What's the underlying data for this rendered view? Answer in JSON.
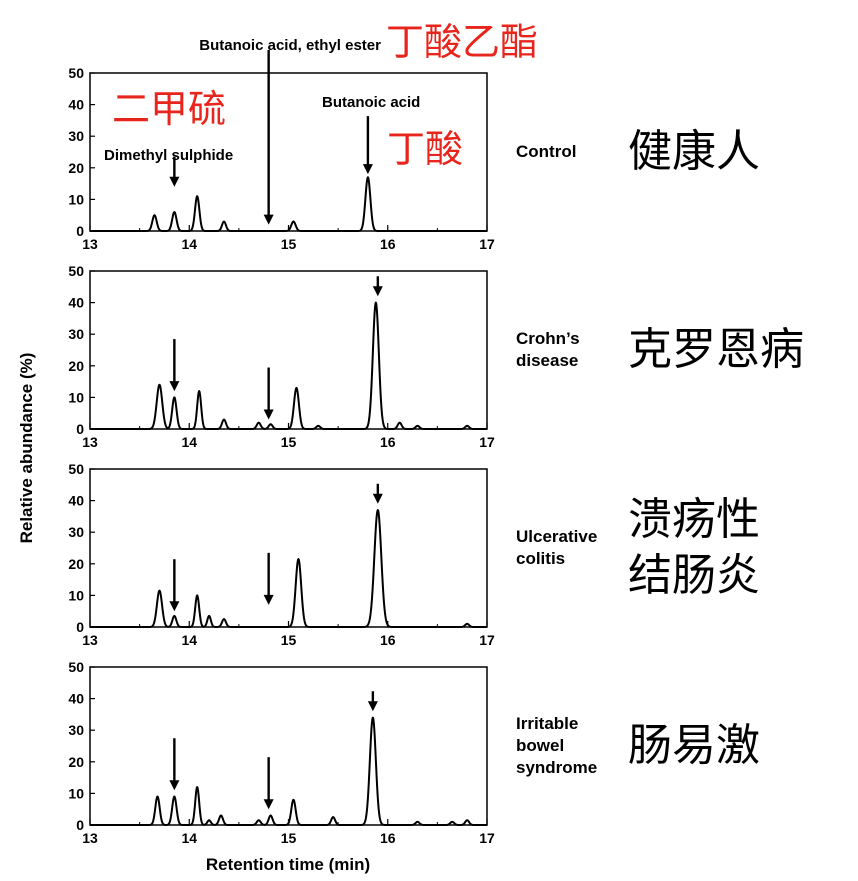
{
  "chart_data": {
    "type": "line",
    "title": "",
    "xlabel": "Retention time (min)",
    "ylabel": "Relative abundance (%)",
    "xlim": [
      13,
      17
    ],
    "ylim": [
      0,
      50
    ],
    "x_ticks": [
      "13",
      "14",
      "15",
      "16",
      "17"
    ],
    "y_ticks": [
      "0",
      "10",
      "20",
      "30",
      "40",
      "50"
    ],
    "grid": false,
    "peak_labels": {
      "dimethyl_sulphide": {
        "en": "Dimethyl sulphide",
        "zh": "二甲硫",
        "x": 13.85
      },
      "ethyl_butanoate": {
        "en": "Butanoic acid, ethyl ester",
        "zh": "丁酸乙酯",
        "x": 14.8
      },
      "butanoic_acid": {
        "en": "Butanoic acid",
        "zh": "丁酸"
      }
    },
    "panels": [
      {
        "label_lines": [
          "Control"
        ],
        "zh_lines": [
          "健康人"
        ],
        "arrows": [
          {
            "x": 13.85,
            "y": 14
          },
          {
            "x": 14.8,
            "y": 2
          },
          {
            "x": 15.8,
            "y": 18
          }
        ],
        "peaks": [
          {
            "x": 13.65,
            "height": 5,
            "width": 0.022
          },
          {
            "x": 13.85,
            "height": 6,
            "width": 0.022
          },
          {
            "x": 14.08,
            "height": 11,
            "width": 0.022
          },
          {
            "x": 14.35,
            "height": 3,
            "width": 0.02
          },
          {
            "x": 15.05,
            "height": 3,
            "width": 0.022
          },
          {
            "x": 15.8,
            "height": 17,
            "width": 0.025
          }
        ]
      },
      {
        "label_lines": [
          "Crohn’s",
          "disease"
        ],
        "zh_lines": [
          "克罗恩病"
        ],
        "arrows": [
          {
            "x": 13.85,
            "y": 12
          },
          {
            "x": 14.8,
            "y": 3
          },
          {
            "x": 15.9,
            "y": 42
          }
        ],
        "peaks": [
          {
            "x": 13.7,
            "height": 14,
            "width": 0.028
          },
          {
            "x": 13.85,
            "height": 10,
            "width": 0.022
          },
          {
            "x": 14.1,
            "height": 12,
            "width": 0.02
          },
          {
            "x": 14.35,
            "height": 3,
            "width": 0.02
          },
          {
            "x": 14.7,
            "height": 2,
            "width": 0.02
          },
          {
            "x": 14.82,
            "height": 1.5,
            "width": 0.02
          },
          {
            "x": 15.08,
            "height": 13,
            "width": 0.025
          },
          {
            "x": 15.3,
            "height": 1,
            "width": 0.02
          },
          {
            "x": 15.88,
            "height": 40,
            "width": 0.03
          },
          {
            "x": 16.12,
            "height": 2,
            "width": 0.02
          },
          {
            "x": 16.3,
            "height": 1,
            "width": 0.02
          },
          {
            "x": 16.8,
            "height": 1,
            "width": 0.02
          }
        ]
      },
      {
        "label_lines": [
          "Ulcerative",
          "colitis"
        ],
        "zh_lines": [
          "溃疡性",
          "结肠炎"
        ],
        "arrows": [
          {
            "x": 13.85,
            "y": 5
          },
          {
            "x": 14.8,
            "y": 7
          },
          {
            "x": 15.9,
            "y": 39
          }
        ],
        "peaks": [
          {
            "x": 13.7,
            "height": 11.5,
            "width": 0.026
          },
          {
            "x": 13.85,
            "height": 3.5,
            "width": 0.02
          },
          {
            "x": 14.08,
            "height": 10,
            "width": 0.02
          },
          {
            "x": 14.2,
            "height": 3.5,
            "width": 0.018
          },
          {
            "x": 14.35,
            "height": 2.5,
            "width": 0.02
          },
          {
            "x": 15.1,
            "height": 21.5,
            "width": 0.028
          },
          {
            "x": 15.9,
            "height": 37,
            "width": 0.035
          },
          {
            "x": 16.8,
            "height": 1,
            "width": 0.02
          }
        ]
      },
      {
        "label_lines": [
          "Irritable",
          "bowel",
          "syndrome"
        ],
        "zh_lines": [
          "肠易激"
        ],
        "arrows": [
          {
            "x": 13.85,
            "y": 11
          },
          {
            "x": 14.8,
            "y": 5
          },
          {
            "x": 15.85,
            "y": 36
          }
        ],
        "peaks": [
          {
            "x": 13.68,
            "height": 9,
            "width": 0.022
          },
          {
            "x": 13.85,
            "height": 9,
            "width": 0.022
          },
          {
            "x": 14.08,
            "height": 12,
            "width": 0.02
          },
          {
            "x": 14.2,
            "height": 1.5,
            "width": 0.018
          },
          {
            "x": 14.32,
            "height": 3,
            "width": 0.02
          },
          {
            "x": 14.7,
            "height": 1.5,
            "width": 0.02
          },
          {
            "x": 14.82,
            "height": 3,
            "width": 0.02
          },
          {
            "x": 15.05,
            "height": 8,
            "width": 0.022
          },
          {
            "x": 15.45,
            "height": 2.5,
            "width": 0.02
          },
          {
            "x": 15.85,
            "height": 34,
            "width": 0.03
          },
          {
            "x": 16.3,
            "height": 1,
            "width": 0.02
          },
          {
            "x": 16.65,
            "height": 1,
            "width": 0.02
          },
          {
            "x": 16.8,
            "height": 1.5,
            "width": 0.02
          }
        ]
      }
    ]
  }
}
